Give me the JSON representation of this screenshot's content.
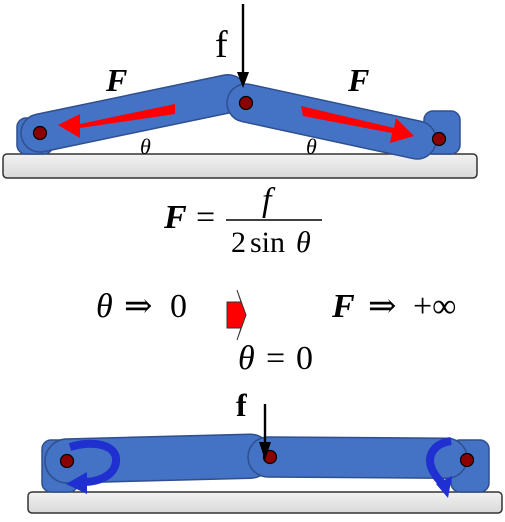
{
  "top_mechanism": {
    "force_label_f": "f",
    "left_force_label": "F",
    "right_force_label": "F",
    "left_angle_label": "θ",
    "right_angle_label": "θ"
  },
  "formula": {
    "lhs": "F",
    "equals": "=",
    "numerator": "f",
    "denominator_coef": "2",
    "denominator_func": "sin",
    "denominator_var": "θ"
  },
  "limits": {
    "theta_limit_var": "θ",
    "theta_limit_arrow": "⇒",
    "theta_limit_value": "0",
    "force_limit_var": "F",
    "force_limit_arrow": "⇒",
    "force_limit_value": "+∞",
    "theta_zero_var": "θ",
    "theta_zero_eq": "=",
    "theta_zero_value": "0"
  },
  "bottom_mechanism": {
    "force_label_f": "f"
  },
  "colors": {
    "link_fill": "#4472C4",
    "link_stroke": "#2F4F8F",
    "pin_fill": "#8B0000",
    "ground_fill": "#E6E6E6",
    "force_arrow": "#FF0000",
    "rotation_arrow": "#1F2FD0",
    "transition_arrow": "#FF0000"
  }
}
